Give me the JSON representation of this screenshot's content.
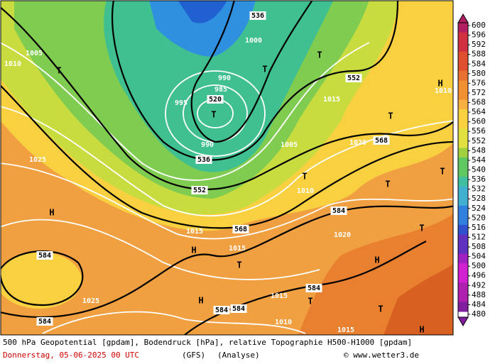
{
  "colorbar": {
    "ticks": [
      600,
      596,
      592,
      588,
      584,
      580,
      576,
      572,
      568,
      564,
      560,
      556,
      552,
      548,
      544,
      540,
      536,
      532,
      528,
      524,
      520,
      516,
      512,
      508,
      504,
      500,
      496,
      492,
      488,
      484,
      480
    ]
  },
  "labels": [
    "536",
    "520",
    "536",
    "552",
    "568",
    "552",
    "568",
    "584",
    "584",
    "584",
    "584",
    "584",
    "584",
    "1005",
    "1010",
    "1025",
    "1025",
    "1000",
    "990",
    "985",
    "995",
    "990",
    "1015",
    "1015",
    "1020",
    "1015",
    "1010",
    "1015",
    "1010",
    "1015",
    "1020",
    "1005",
    "1010",
    "H",
    "H",
    "H",
    "H",
    "H",
    "H",
    "T",
    "T",
    "T",
    "T",
    "T",
    "T",
    "T",
    "T",
    "T",
    "T",
    "T",
    "T"
  ],
  "footer": {
    "line1": "500 hPa Geopotential [gpdam], Bodendruck [hPa], relative Topographie H500-H1000 [gpdam]",
    "date": "Donnerstag, 05-06-2025  00 UTC",
    "model": "(GFS)",
    "run": "(Analyse)",
    "credit": "© www.wetter3.de"
  }
}
